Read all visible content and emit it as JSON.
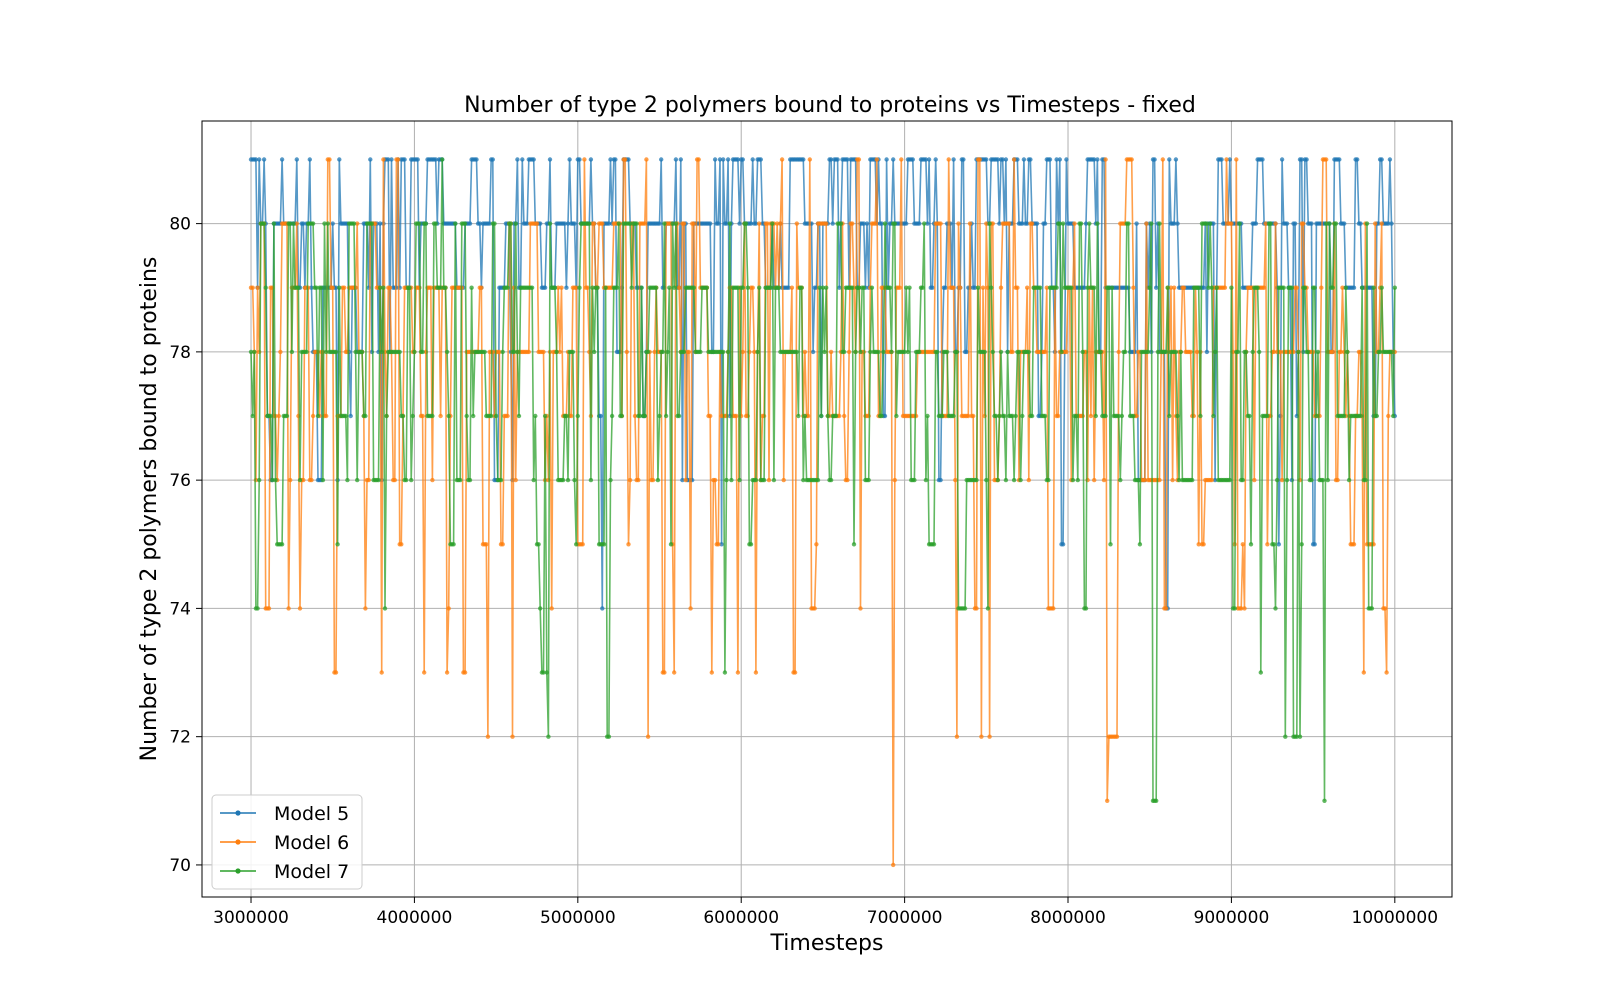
{
  "chart_data": {
    "type": "line",
    "title": "Number of type 2 polymers bound to proteins vs Timesteps - fixed",
    "xlabel": "Timesteps",
    "ylabel": "Number of type 2 polymers bound to proteins",
    "xlim": [
      2700000,
      10350000
    ],
    "ylim": [
      69.5,
      81.6
    ],
    "x_ticks": [
      3000000,
      4000000,
      5000000,
      6000000,
      7000000,
      8000000,
      9000000,
      10000000
    ],
    "x_tick_labels": [
      "3000000",
      "4000000",
      "5000000",
      "6000000",
      "7000000",
      "8000000",
      "9000000",
      "10000000"
    ],
    "y_ticks": [
      70,
      72,
      74,
      76,
      78,
      80
    ],
    "y_tick_labels": [
      "70",
      "72",
      "74",
      "76",
      "78",
      "80"
    ],
    "grid": true,
    "legend_position": "lower-left",
    "x_step": 10000,
    "x_start": 3000000,
    "x_end": 10000000,
    "series": [
      {
        "name": "Model 5",
        "color": "#1f77b4",
        "level_distribution": [
          [
            81,
            0.28
          ],
          [
            80,
            0.38
          ],
          [
            79,
            0.2
          ],
          [
            78,
            0.08
          ],
          [
            77,
            0.03
          ],
          [
            76,
            0.02
          ],
          [
            75,
            0.01
          ]
        ],
        "noted_minima": [
          [
            5150000,
            74
          ],
          [
            8600000,
            74
          ],
          [
            9500000,
            75
          ]
        ]
      },
      {
        "name": "Model 6",
        "color": "#ff7f0e",
        "level_distribution": [
          [
            81,
            0.05
          ],
          [
            80,
            0.14
          ],
          [
            79,
            0.22
          ],
          [
            78,
            0.22
          ],
          [
            77,
            0.15
          ],
          [
            76,
            0.1
          ],
          [
            75,
            0.05
          ],
          [
            74,
            0.04
          ],
          [
            73,
            0.03
          ]
        ],
        "noted_minima": [
          [
            4450000,
            72
          ],
          [
            4600000,
            72
          ],
          [
            5430000,
            72
          ],
          [
            6930000,
            70
          ],
          [
            7320000,
            72
          ],
          [
            7470000,
            72
          ],
          [
            7520000,
            72
          ],
          [
            8240000,
            71
          ],
          [
            8250000,
            72
          ]
        ]
      },
      {
        "name": "Model 7",
        "color": "#2ca02c",
        "level_distribution": [
          [
            81,
            0.01
          ],
          [
            80,
            0.1
          ],
          [
            79,
            0.22
          ],
          [
            78,
            0.25
          ],
          [
            77,
            0.2
          ],
          [
            76,
            0.12
          ],
          [
            75,
            0.06
          ],
          [
            74,
            0.03
          ],
          [
            73,
            0.01
          ]
        ],
        "noted_minima": [
          [
            3030000,
            74
          ],
          [
            4820000,
            72
          ],
          [
            5180000,
            72
          ],
          [
            8520000,
            71
          ],
          [
            9330000,
            72
          ],
          [
            9380000,
            72
          ],
          [
            9420000,
            72
          ],
          [
            9570000,
            71
          ]
        ]
      }
    ]
  }
}
